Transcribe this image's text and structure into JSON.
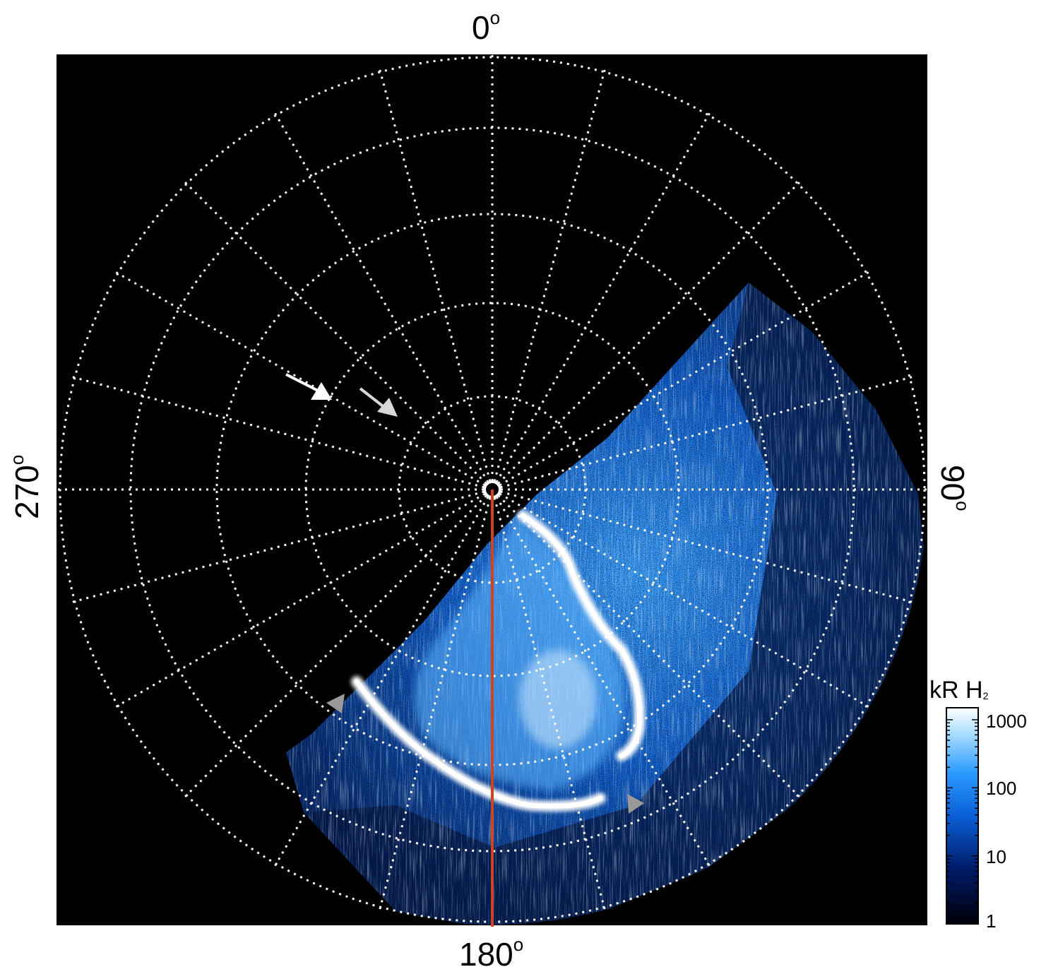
{
  "image": {
    "labels": {
      "top": "0",
      "right": "90",
      "bottom": "180",
      "left": "270",
      "degree_symbol": "o"
    },
    "colorbar": {
      "title": "kR H",
      "title_sub": "2",
      "ticks": [
        "1000",
        "100",
        "10",
        "1"
      ],
      "scale": "log",
      "range": [
        1,
        1500
      ],
      "colors": [
        "#000008",
        "#001a66",
        "#0a5fd6",
        "#2b9bff",
        "#a9dcff",
        "#ffffff"
      ]
    },
    "colors": {
      "background": "#000000",
      "grid": "#ffffff",
      "meridian": "#d2421c",
      "arrow_white": "#ffffff",
      "arrow_grey": "#d8d8d8",
      "marker_grey": "#9a9a9a"
    }
  }
}
